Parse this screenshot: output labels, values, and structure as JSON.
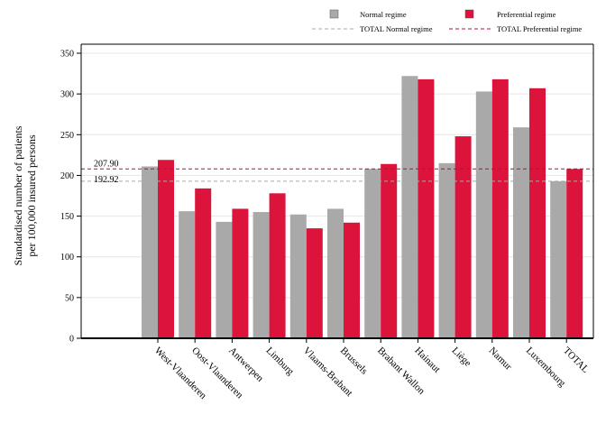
{
  "chart_data": {
    "type": "bar",
    "title": "",
    "xlabel": "",
    "ylabel_lines": [
      "Standardised number of patients",
      "per 100,000 insured persons"
    ],
    "ylim": [
      0,
      350
    ],
    "yticks": [
      0,
      50,
      100,
      150,
      200,
      250,
      300,
      350
    ],
    "grid": true,
    "legend_position": "top-right",
    "categories": [
      "West-Vlaanderen",
      "Oost-Vlaanderen",
      "Antwerpen",
      "Limburg",
      "Vlaams-Brabant",
      "Brussels",
      "Brabant Wallon",
      "Hainaut",
      "Liège",
      "Namur",
      "Luxembourg",
      "TOTAL"
    ],
    "series": [
      {
        "name": "Normal regime",
        "color": "#a9a9a9",
        "values": [
          211,
          156,
          143,
          155,
          152,
          159,
          208,
          322,
          215,
          303,
          259,
          192.92
        ]
      },
      {
        "name": "Preferential regime",
        "color": "#dc143c",
        "values": [
          219,
          184,
          159,
          178,
          135,
          142,
          214,
          318,
          248,
          318,
          307,
          207.9
        ]
      }
    ],
    "reference_lines": [
      {
        "name": "TOTAL Normal regime",
        "value": 192.92,
        "label": "192.92",
        "color": "#a9a9a9",
        "style": "dashed"
      },
      {
        "name": "TOTAL Preferential regime",
        "value": 207.9,
        "label": "207.90",
        "color": "#b0103c",
        "style": "dashed"
      }
    ]
  }
}
